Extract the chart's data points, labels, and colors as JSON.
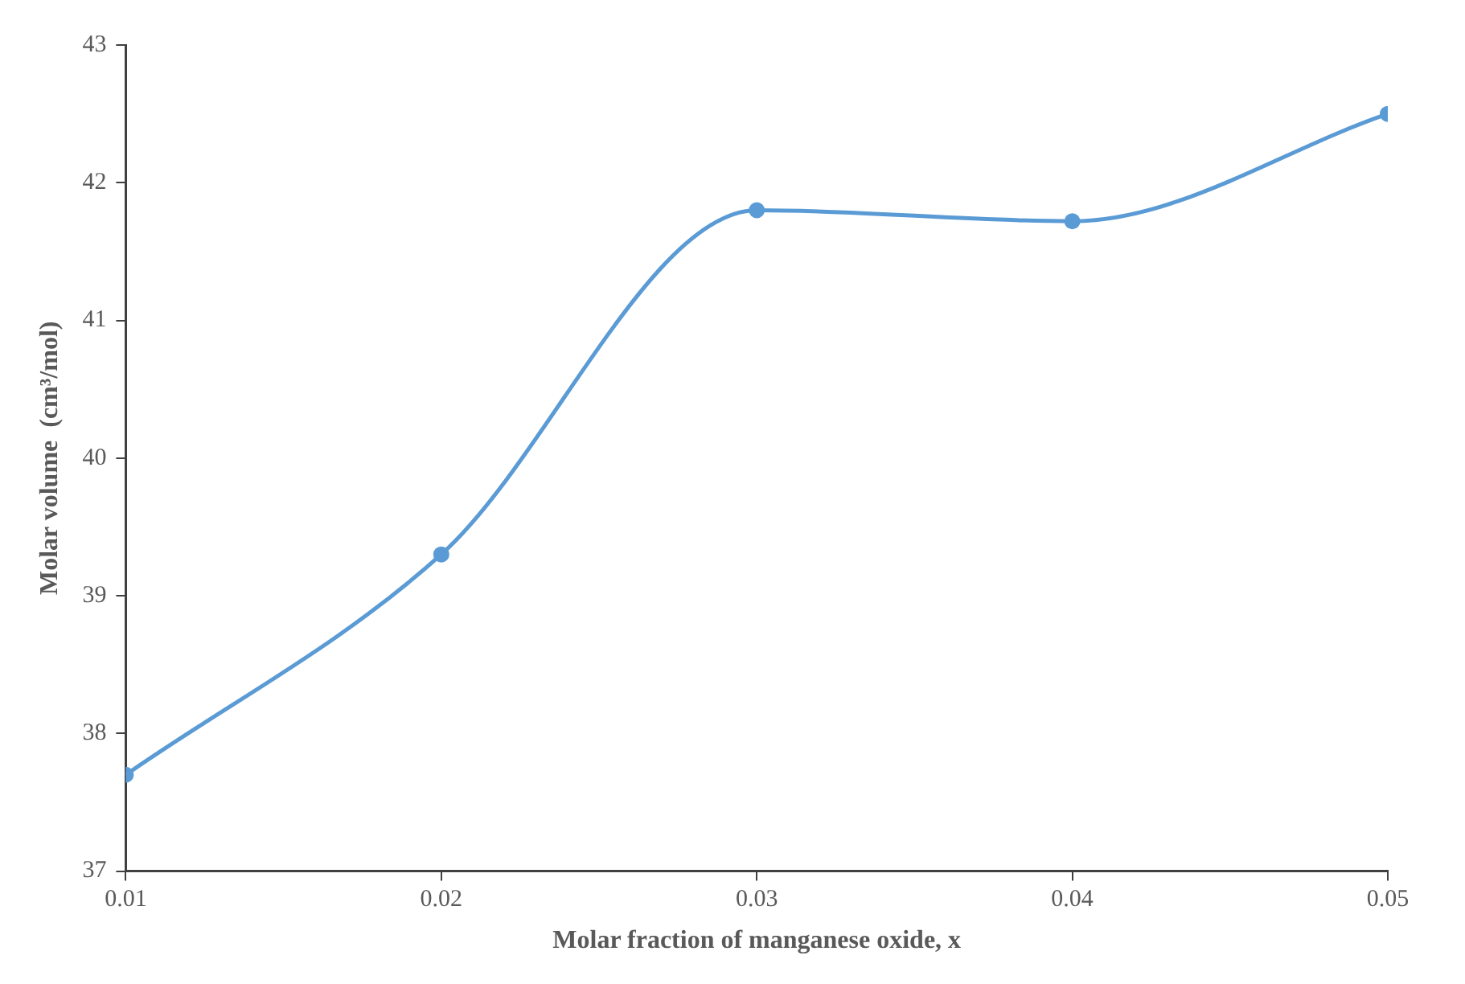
{
  "chart_data": {
    "type": "line",
    "xlabel": "Molar fraction of manganese oxide, x",
    "ylabel": "Molar volume  (cm³/mol)",
    "x": [
      0.01,
      0.02,
      0.03,
      0.04,
      0.05
    ],
    "series": [
      {
        "color": "#5b9bd5",
        "values": [
          37.7,
          39.3,
          41.8,
          41.72,
          42.5
        ]
      }
    ],
    "xlim": [
      0.01,
      0.05
    ],
    "xticks": [
      {
        "value": 0.01,
        "label": "0.01"
      },
      {
        "value": 0.02,
        "label": "0.02"
      },
      {
        "value": 0.03,
        "label": "0.03"
      },
      {
        "value": 0.04,
        "label": "0.04"
      },
      {
        "value": 0.05,
        "label": "0.05"
      }
    ],
    "ylim": [
      37,
      43
    ],
    "yticks": [
      37,
      38,
      39,
      40,
      41,
      42,
      43
    ],
    "grid": false,
    "legend": false,
    "marker": "circle",
    "line_style": "solid"
  }
}
